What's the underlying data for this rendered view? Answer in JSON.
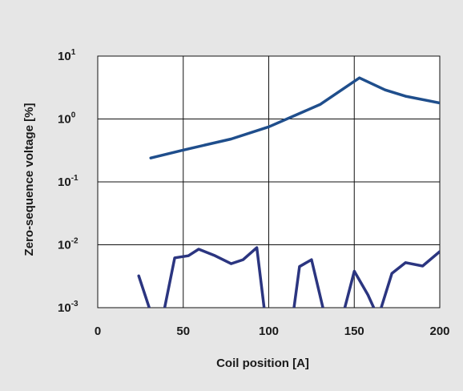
{
  "chart_data": {
    "type": "line",
    "title": "",
    "xlabel": "Coil position [A]",
    "ylabel": "Zero-sequence voltage [%]",
    "xlim": [
      0,
      200
    ],
    "x_ticks": [
      0,
      50,
      100,
      150,
      200
    ],
    "ylim": [
      0.001,
      10
    ],
    "y_scale": "log",
    "y_ticks": [
      {
        "value": 10,
        "base": "10",
        "exp": "1"
      },
      {
        "value": 1,
        "base": "10",
        "exp": "0"
      },
      {
        "value": 0.1,
        "base": "10",
        "exp": "-1"
      },
      {
        "value": 0.01,
        "base": "10",
        "exp": "-2"
      },
      {
        "value": 0.001,
        "base": "10",
        "exp": "-3"
      }
    ],
    "grid": true,
    "background": "#e6e6e6",
    "plot_background": "#ffffff",
    "series": [
      {
        "color": "#1f4e8c",
        "x": [
          31,
          50,
          78,
          100,
          130,
          153,
          168,
          180,
          200
        ],
        "y": [
          0.24,
          0.32,
          0.48,
          0.75,
          1.7,
          4.5,
          2.9,
          2.3,
          1.8
        ]
      },
      {
        "color": "#2b3580",
        "x": [
          24,
          32,
          38,
          45,
          53,
          59,
          68,
          78,
          85,
          93,
          98,
          114,
          118,
          125,
          133,
          143,
          150,
          158,
          164,
          172,
          180,
          190,
          200
        ],
        "y": [
          0.0032,
          0.0007,
          0.0007,
          0.0062,
          0.0067,
          0.0085,
          0.0068,
          0.005,
          0.0058,
          0.009,
          0.0007,
          0.0007,
          0.0045,
          0.0058,
          0.0007,
          0.0007,
          0.0038,
          0.0016,
          0.0007,
          0.0035,
          0.0052,
          0.0046,
          0.0078
        ]
      }
    ]
  }
}
